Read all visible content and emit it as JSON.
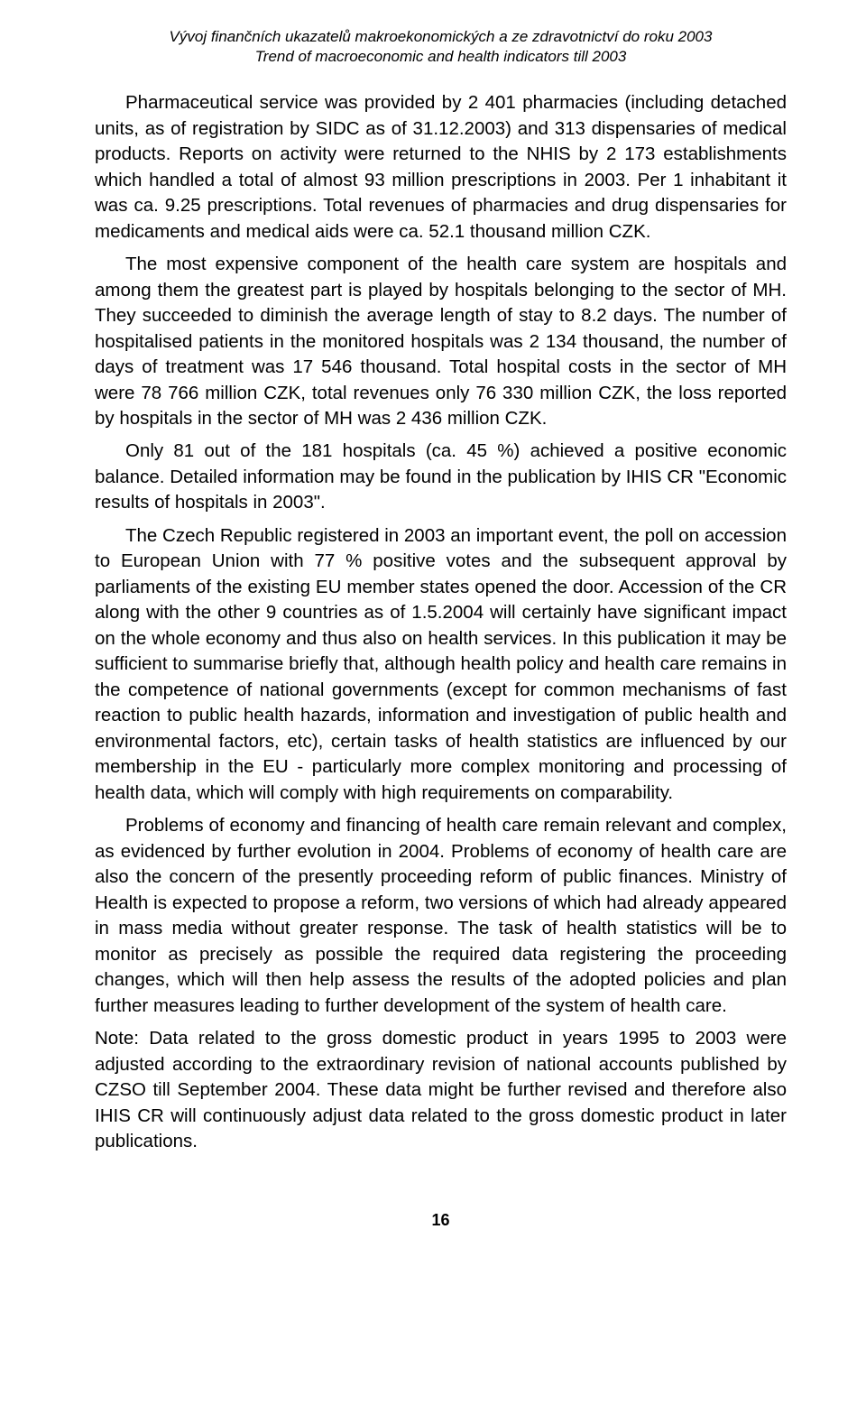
{
  "header": {
    "line1": "Vývoj finančních ukazatelů makroekonomických a ze zdravotnictví do roku 2003",
    "line2": "Trend of macroeconomic and health indicators till 2003"
  },
  "paragraphs": {
    "p1": "Pharmaceutical service was provided by 2 401 pharmacies (including detached units, as of registration by SIDC as of 31.12.2003) and 313 dispensaries of medical products. Reports on activity were returned to the NHIS by 2 173 establishments which handled a total of almost 93 million prescriptions in 2003. Per 1 inhabitant it was ca. 9.25 prescriptions. Total revenues of pharmacies and drug dispensaries for medicaments and medical aids were ca. 52.1 thousand million CZK.",
    "p2": "The most expensive component of the health care system are hospitals and among them the greatest part is played by hospitals belonging to the sector of MH. They succeeded to diminish the average length of stay to 8.2 days. The number of hospitalised patients in the monitored hospitals was 2 134 thousand, the number of days of treatment was 17 546 thousand. Total hospital costs in the sector of MH were 78 766 million CZK, total revenues only 76 330 million CZK, the loss reported by hospitals in the sector of MH was 2 436 million CZK.",
    "p3": "Only 81 out of the 181 hospitals (ca. 45 %) achieved a positive economic balance. Detailed information may be found in the publication by IHIS CR \"Economic results of hospitals in 2003\".",
    "p4": "The Czech Republic registered in 2003 an important event, the poll on accession to European Union with 77 % positive votes and the subsequent approval by parliaments of the existing EU member states opened the door. Accession of the CR along with the other 9 countries as of 1.5.2004 will certainly have significant impact on the whole economy and thus also on health services. In this publication it may be sufficient to summarise briefly that, although health policy and health care remains in the competence of national governments (except for common mechanisms of fast reaction to public health hazards, information and investigation of public health and environmental factors, etc), certain tasks of health statistics are influenced by our membership in the EU - particularly more complex monitoring and processing of health data, which will comply with high requirements on comparability.",
    "p5": "Problems of economy and financing of health care remain relevant and complex, as evidenced by further evolution in 2004. Problems of economy of health care are also the concern of the presently proceeding reform of public finances. Ministry of Health is expected to propose a reform, two versions of which had already appeared in mass media without greater response. The task of health statistics will be to monitor as precisely as possible the required data registering the proceeding changes, which will then help assess the results of the adopted policies and plan further measures leading to further development of the system of health care.",
    "note": "Note: Data related to the gross domestic product in years 1995 to 2003 were adjusted according to the extraordinary revision of national accounts published by CZSO till September 2004. These data might be further revised and therefore also IHIS CR will continuously adjust data related to the gross domestic product in later publications."
  },
  "page_number": "16"
}
